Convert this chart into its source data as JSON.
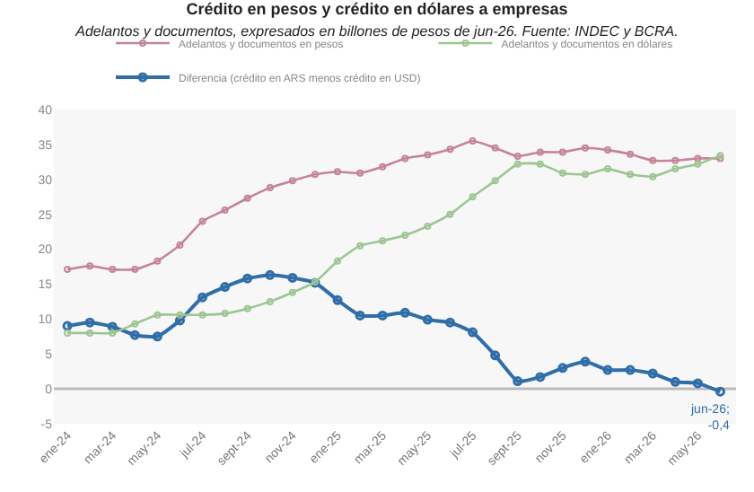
{
  "chart_data": {
    "type": "line",
    "title": "Crédito en pesos y crédito en dólares a empresas",
    "subtitle": "Adelantos y documentos, expresados en billones de pesos de jun-26. Fuente: INDEC y BCRA.",
    "categories": [
      "ene-24",
      null,
      "mar-24",
      null,
      "may-24",
      null,
      "jul-24",
      null,
      "sept-24",
      null,
      "nov-24",
      null,
      "ene-25",
      null,
      "mar-25",
      null,
      "may-25",
      null,
      "jul-25",
      null,
      "sept-25",
      null,
      "nov-25",
      null,
      "ene-26",
      null,
      "mar-26",
      null,
      "may-26",
      null
    ],
    "series": [
      {
        "name": "Adelantos y documentos en pesos",
        "color": "#c48496",
        "values": [
          17.1,
          17.6,
          17.1,
          17.1,
          18.3,
          20.6,
          24.0,
          25.6,
          27.3,
          28.8,
          29.8,
          30.7,
          31.1,
          30.9,
          31.8,
          33.0,
          33.5,
          34.3,
          35.5,
          34.5,
          33.3,
          33.9,
          33.9,
          34.5,
          34.2,
          33.6,
          32.7,
          32.7,
          33.0,
          33.0
        ]
      },
      {
        "name": "Adelantos y documentos en dólares",
        "color": "#9dc592",
        "values": [
          8.0,
          8.0,
          8.0,
          9.3,
          10.6,
          10.6,
          10.6,
          10.8,
          11.5,
          12.5,
          13.8,
          15.3,
          18.3,
          20.5,
          21.2,
          22.0,
          23.3,
          25.0,
          27.5,
          29.8,
          32.2,
          32.2,
          30.9,
          30.7,
          31.5,
          30.7,
          30.4,
          31.5,
          32.2,
          33.4
        ]
      },
      {
        "name": "Diferencia (crédito en ARS menos crédito en USD)",
        "color": "#2f6ea8",
        "values": [
          9.0,
          9.5,
          8.9,
          7.7,
          7.5,
          9.8,
          13.1,
          14.6,
          15.8,
          16.3,
          15.9,
          15.2,
          12.7,
          10.5,
          10.5,
          10.9,
          9.9,
          9.5,
          8.1,
          4.8,
          1.1,
          1.7,
          3.0,
          3.9,
          2.7,
          2.7,
          2.2,
          1.0,
          0.8,
          -0.4
        ]
      }
    ],
    "ylim": [
      -5,
      40
    ],
    "yticks": [
      -5,
      0,
      5,
      10,
      15,
      20,
      25,
      30,
      35,
      40
    ],
    "grid": false,
    "ref_lines": [
      {
        "axis": "y",
        "value": 0,
        "color": "#bbbbbb"
      }
    ],
    "legend": "top",
    "marker": "circle",
    "line_style": "solid",
    "annotations": [
      {
        "text": "jun-26;\n-0,4",
        "y": -0.4
      }
    ]
  }
}
